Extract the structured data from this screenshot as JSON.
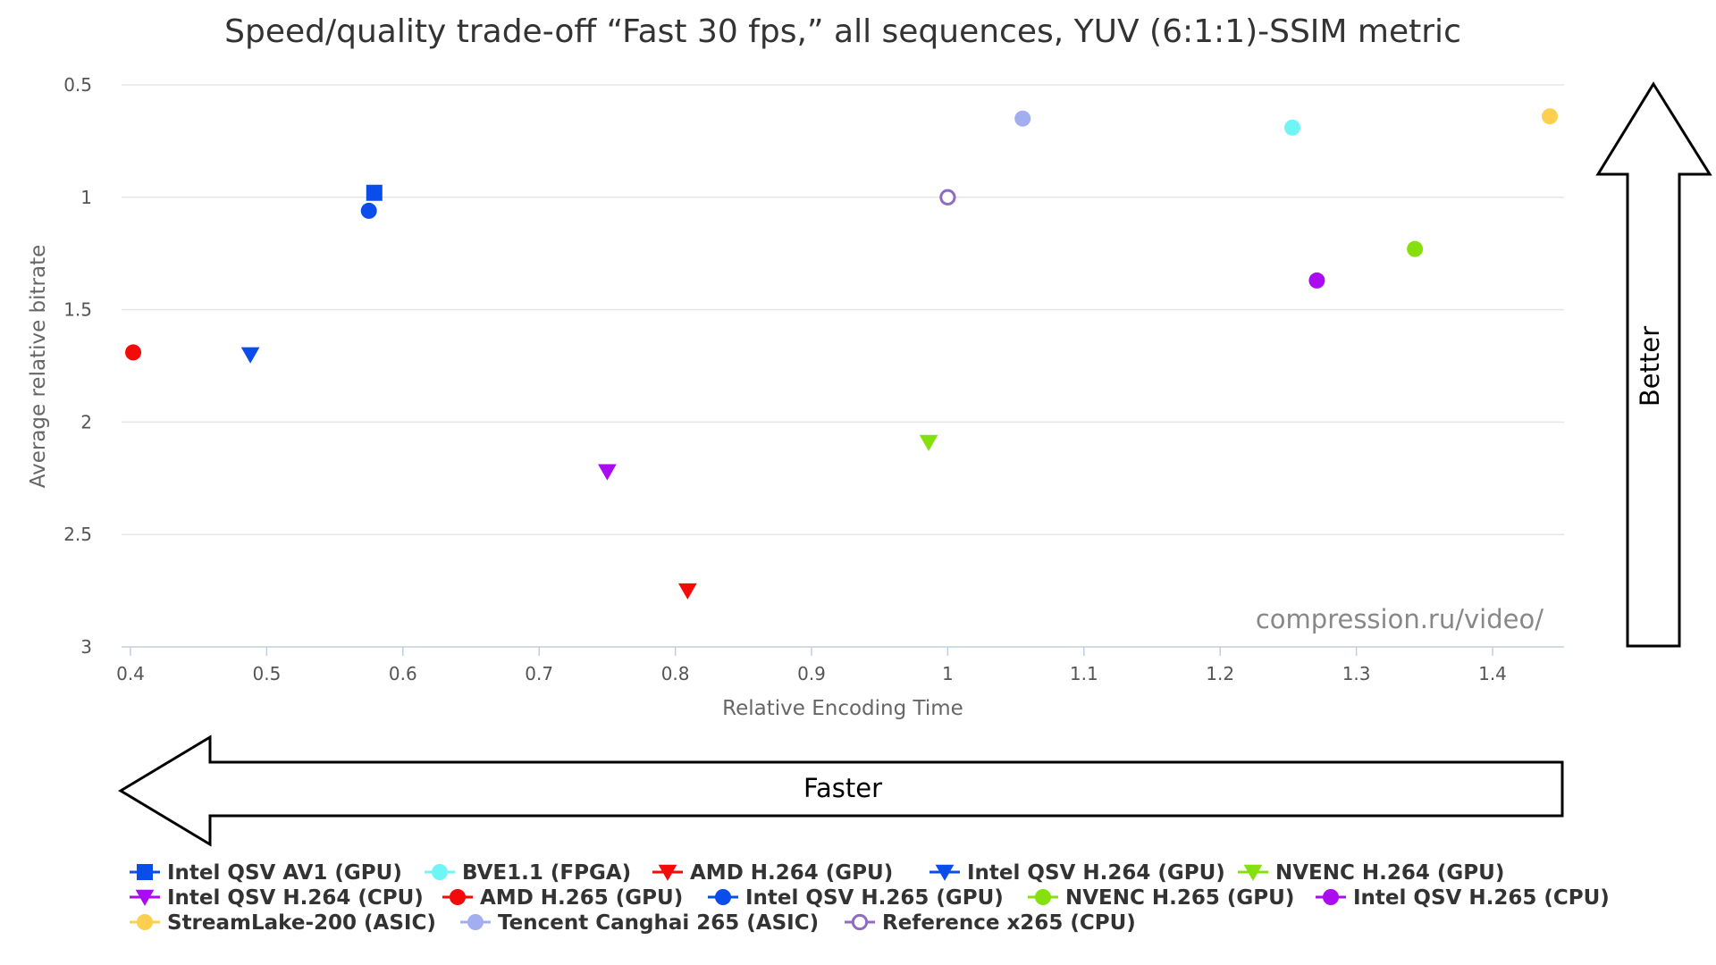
{
  "chart_data": {
    "type": "scatter",
    "title": "Speed/quality trade-off “Fast 30 fps,” all sequences, YUV (6:1:1)-SSIM metric",
    "xlabel": "Relative Encoding Time",
    "ylabel": "Average relative bitrate",
    "xlim": [
      0.4,
      1.45
    ],
    "ylim": [
      0.5,
      3
    ],
    "y_inverted": true,
    "x_ticks": [
      "0.4",
      "0.5",
      "0.6",
      "0.7",
      "0.8",
      "0.9",
      "1",
      "1.1",
      "1.2",
      "1.3",
      "1.4"
    ],
    "y_ticks": [
      "0.5",
      "1",
      "1.5",
      "2",
      "2.5",
      "3"
    ],
    "grid": "horizontal",
    "legend_placement": "bottom",
    "watermark": "compression.ru/video/",
    "annotations": {
      "better": "Better",
      "faster": "Faster"
    },
    "series": [
      {
        "name": "Intel QSV AV1 (GPU)",
        "color": "#0B4DEB",
        "marker": "square",
        "points": [
          {
            "x": 0.579,
            "y": 0.98
          }
        ]
      },
      {
        "name": "BVE1.1 (FPGA)",
        "color": "#6FF5F5",
        "marker": "circle",
        "points": [
          {
            "x": 1.253,
            "y": 0.69
          }
        ]
      },
      {
        "name": "AMD H.264 (GPU)",
        "color": "#F50A0A",
        "marker": "triangle-down",
        "points": [
          {
            "x": 0.809,
            "y": 2.75
          }
        ]
      },
      {
        "name": "Intel QSV H.264 (GPU)",
        "color": "#0B4DEB",
        "marker": "triangle-down",
        "points": [
          {
            "x": 0.488,
            "y": 1.7
          }
        ]
      },
      {
        "name": "NVENC H.264 (GPU)",
        "color": "#86E00E",
        "marker": "triangle-down",
        "points": [
          {
            "x": 0.986,
            "y": 2.09
          }
        ]
      },
      {
        "name": "Intel QSV H.264 (CPU)",
        "color": "#AA0BF0",
        "marker": "triangle-down",
        "points": [
          {
            "x": 0.75,
            "y": 2.22
          }
        ]
      },
      {
        "name": "AMD H.265 (GPU)",
        "color": "#F50A0A",
        "marker": "circle",
        "points": [
          {
            "x": 0.402,
            "y": 1.69
          }
        ]
      },
      {
        "name": "Intel QSV H.265 (GPU)",
        "color": "#0B4DEB",
        "marker": "circle",
        "points": [
          {
            "x": 0.575,
            "y": 1.06
          }
        ]
      },
      {
        "name": "NVENC H.265 (GPU)",
        "color": "#86E00E",
        "marker": "circle",
        "points": [
          {
            "x": 1.343,
            "y": 1.23
          }
        ]
      },
      {
        "name": "Intel QSV H.265 (CPU)",
        "color": "#AA0BF0",
        "marker": "circle",
        "points": [
          {
            "x": 1.271,
            "y": 1.37
          }
        ]
      },
      {
        "name": "StreamLake-200 (ASIC)",
        "color": "#FDCF4E",
        "marker": "circle",
        "points": [
          {
            "x": 1.442,
            "y": 0.64
          }
        ]
      },
      {
        "name": "Tencent Canghai 265 (ASIC)",
        "color": "#A3AEF0",
        "marker": "circle",
        "points": [
          {
            "x": 1.055,
            "y": 0.65
          }
        ]
      },
      {
        "name": "Reference x265 (CPU)",
        "color": "#8E6CC0",
        "marker": "circle-open",
        "points": [
          {
            "x": 1.0,
            "y": 1.0
          }
        ]
      }
    ]
  }
}
